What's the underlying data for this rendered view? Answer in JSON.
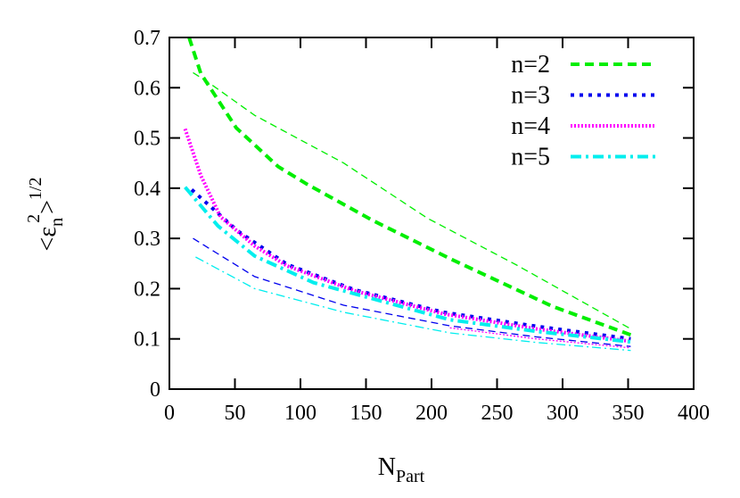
{
  "chart_data": {
    "type": "line",
    "title": "",
    "xlabel": "N",
    "xlabel_sub": "Part",
    "ylabel_parts": {
      "open": "<ε",
      "sub": "n",
      "sup": "2",
      "close": ">",
      "power": "1/2"
    },
    "xlim": [
      0,
      400
    ],
    "ylim": [
      0,
      0.7
    ],
    "xticks": [
      "0",
      "50",
      "100",
      "150",
      "200",
      "250",
      "300",
      "350",
      "400"
    ],
    "yticks": [
      "0",
      "0.1",
      "0.2",
      "0.3",
      "0.4",
      "0.5",
      "0.6",
      "0.7"
    ],
    "grid": false,
    "legend_position": "top-right",
    "series": [
      {
        "name": "n=2",
        "color": "#00ee00",
        "style": "dashed",
        "weight": "thick",
        "x": [
          15,
          24,
          51,
          83,
          105,
          155,
          214,
          292,
          352
        ],
        "y": [
          0.7,
          0.628,
          0.52,
          0.443,
          0.408,
          0.336,
          0.26,
          0.165,
          0.108
        ]
      },
      {
        "name": "n=3",
        "color": "#0000ee",
        "style": "dotted",
        "weight": "thick",
        "x": [
          17,
          52,
          90,
          141,
          209,
          280,
          352
        ],
        "y": [
          0.397,
          0.315,
          0.248,
          0.198,
          0.153,
          0.125,
          0.1
        ]
      },
      {
        "name": "n=4",
        "color": "#ff00ff",
        "style": "dotted-fine",
        "weight": "thick",
        "x": [
          12,
          24,
          39,
          65,
          90,
          141,
          209,
          280,
          352
        ],
        "y": [
          0.518,
          0.425,
          0.343,
          0.285,
          0.245,
          0.196,
          0.15,
          0.12,
          0.095
        ]
      },
      {
        "name": "n=5",
        "color": "#00eeee",
        "style": "dashdot",
        "weight": "thick",
        "x": [
          12,
          37,
          65,
          110,
          214,
          280,
          352
        ],
        "y": [
          0.402,
          0.325,
          0.265,
          0.212,
          0.138,
          0.115,
          0.094
        ]
      },
      {
        "color": "#00ee00",
        "style": "dashed",
        "weight": "thin",
        "x": [
          18,
          29,
          65,
          133,
          197,
          265,
          352
        ],
        "y": [
          0.63,
          0.612,
          0.545,
          0.45,
          0.34,
          0.247,
          0.12
        ]
      },
      {
        "color": "#0000ee",
        "style": "dashed",
        "weight": "thin",
        "x": [
          18,
          65,
          133,
          214,
          280,
          352
        ],
        "y": [
          0.3,
          0.224,
          0.167,
          0.126,
          0.104,
          0.085
        ]
      },
      {
        "color": "#ff00ff",
        "style": "dotted-fine",
        "weight": "thin",
        "x": [
          214,
          280,
          352
        ],
        "y": [
          0.122,
          0.1,
          0.082
        ]
      },
      {
        "color": "#00eeee",
        "style": "dashdot",
        "weight": "thin",
        "x": [
          20,
          65,
          133,
          214,
          280,
          352
        ],
        "y": [
          0.263,
          0.2,
          0.153,
          0.112,
          0.093,
          0.077
        ]
      }
    ]
  }
}
